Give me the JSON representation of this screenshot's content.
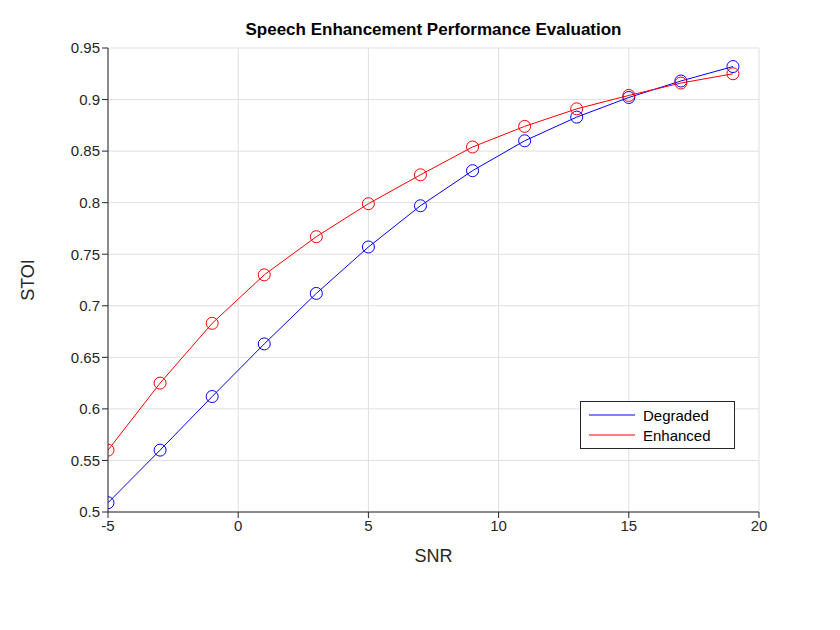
{
  "chart_data": {
    "type": "line",
    "title": "Speech Enhancement Performance Evaluation",
    "x_label": "SNR",
    "y_label": "STOI",
    "x": [
      -5,
      -3,
      -1,
      1,
      3,
      5,
      7,
      9,
      11,
      13,
      15,
      17,
      19
    ],
    "series": [
      {
        "name": "Degraded",
        "color": "#0000ff",
        "marker": "circle",
        "line_style": "solid",
        "values": [
          0.509,
          0.56,
          0.612,
          0.663,
          0.712,
          0.757,
          0.797,
          0.831,
          0.86,
          0.883,
          0.902,
          0.918,
          0.932
        ]
      },
      {
        "name": "Enhanced",
        "color": "#ff0000",
        "marker": "circle",
        "line_style": "solid",
        "values": [
          0.56,
          0.625,
          0.683,
          0.73,
          0.767,
          0.799,
          0.827,
          0.854,
          0.874,
          0.891,
          0.904,
          0.916,
          0.925
        ]
      }
    ],
    "xlim": [
      -5,
      20
    ],
    "xticks": [
      -5,
      0,
      5,
      10,
      15,
      20
    ],
    "ylim": [
      0.5,
      0.95
    ],
    "yticks": [
      0.5,
      0.55,
      0.6,
      0.65,
      0.7,
      0.75,
      0.8,
      0.85,
      0.9,
      0.95
    ],
    "grid": true,
    "legend": "lower right"
  }
}
